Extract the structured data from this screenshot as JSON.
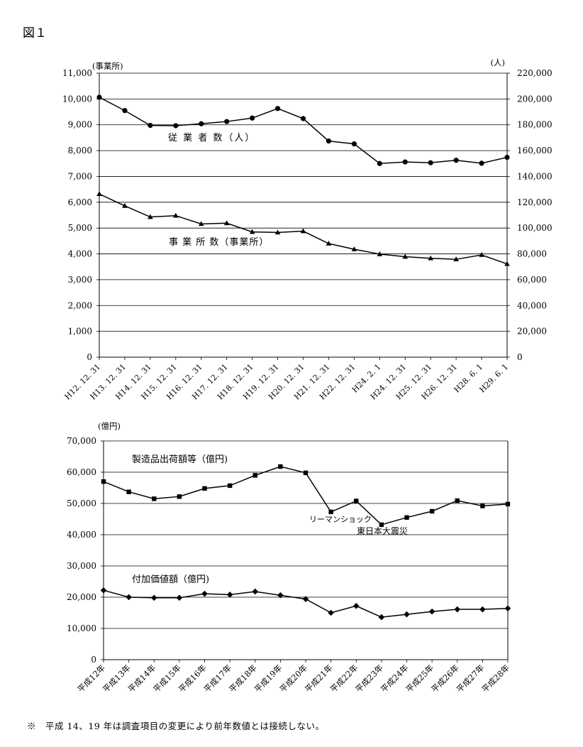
{
  "figure_title": "図１",
  "footnote": "※　平成 14、19 年は調査項目の変更により前年数値とは接続しない。",
  "chart_data": [
    {
      "type": "line",
      "left_unit": "(事業所)",
      "right_unit": "(人)",
      "left_ylim": [
        0,
        11000
      ],
      "right_ylim": [
        0,
        220000
      ],
      "left_ticks": [
        "0",
        "1,000",
        "2,000",
        "3,000",
        "4,000",
        "5,000",
        "6,000",
        "7,000",
        "8,000",
        "9,000",
        "10,000",
        "11,000"
      ],
      "right_ticks": [
        "0",
        "20,000",
        "40,000",
        "60,000",
        "80,000",
        "100,000",
        "120,000",
        "140,000",
        "160,000",
        "180,000",
        "200,000",
        "220,000"
      ],
      "categories": [
        "H12. 12. 31",
        "H13. 12. 31",
        "H14. 12. 31",
        "H15. 12. 31",
        "H16. 12. 31",
        "H17. 12. 31",
        "H18. 12. 31",
        "H19. 12. 31",
        "H20. 12. 31",
        "H21. 12. 31",
        "H22. 12. 31",
        "H24. 2. 1",
        "H24. 12. 31",
        "H25. 12. 31",
        "H26. 12. 31",
        "H28. 6. 1",
        "H29. 6. 1"
      ],
      "series": [
        {
          "name": "従 業 者 数（人）",
          "axis": "right",
          "marker": "circle",
          "values": [
            201300,
            191000,
            179500,
            179300,
            180800,
            182500,
            185200,
            192600,
            184800,
            167400,
            165200,
            150000,
            151200,
            150600,
            152500,
            150200,
            154800
          ]
        },
        {
          "name": "事 業 所 数（事業所）",
          "axis": "left",
          "marker": "triangle",
          "values": [
            6320,
            5860,
            5430,
            5480,
            5160,
            5190,
            4850,
            4830,
            4880,
            4400,
            4180,
            3990,
            3890,
            3830,
            3790,
            3960,
            3610
          ]
        }
      ]
    },
    {
      "type": "line",
      "ylabel": "(億円)",
      "ylim": [
        0,
        70000
      ],
      "yticks": [
        "0",
        "10,000",
        "20,000",
        "30,000",
        "40,000",
        "50,000",
        "60,000",
        "70,000"
      ],
      "categories": [
        "平成12年",
        "平成13年",
        "平成14年",
        "平成15年",
        "平成16年",
        "平成17年",
        "平成18年",
        "平成19年",
        "平成20年",
        "平成21年",
        "平成22年",
        "平成23年",
        "平成24年",
        "平成25年",
        "平成26年",
        "平成27年",
        "平成28年"
      ],
      "series": [
        {
          "name": "製造品出荷額等（億円)",
          "marker": "square",
          "values": [
            57000,
            53700,
            51500,
            52200,
            54800,
            55700,
            59000,
            61800,
            59800,
            47300,
            50800,
            43200,
            45500,
            47500,
            50900,
            49200,
            49800
          ]
        },
        {
          "name": "付加価値額（億円)",
          "marker": "diamond",
          "values": [
            22200,
            20000,
            19800,
            19800,
            21100,
            20800,
            21800,
            20600,
            19400,
            15000,
            17200,
            13600,
            14500,
            15400,
            16100,
            16100,
            16400
          ]
        }
      ],
      "annotations": [
        "リーマンショック",
        "東日本大震災"
      ]
    }
  ]
}
